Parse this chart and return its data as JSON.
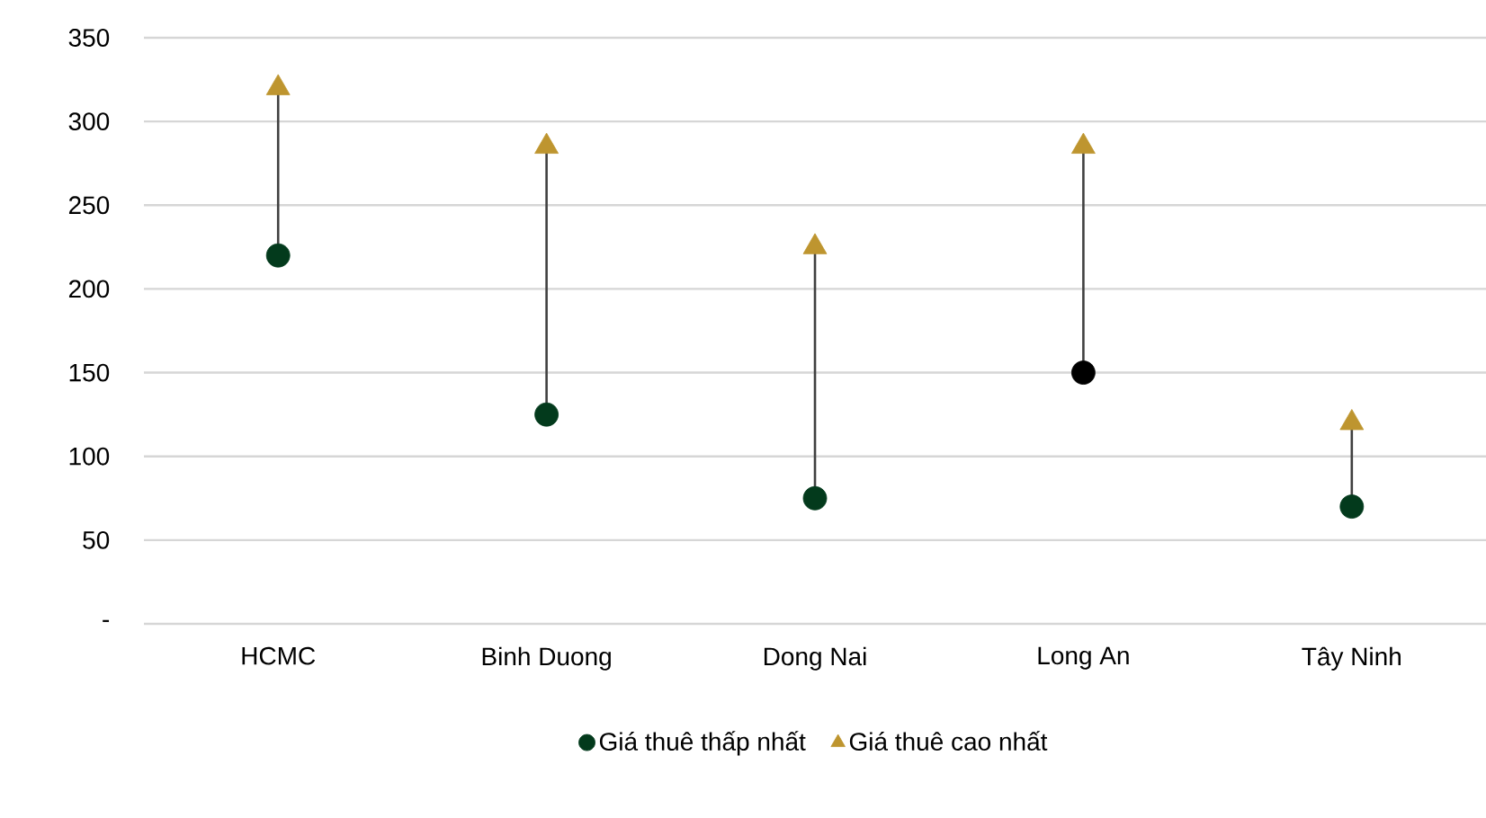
{
  "chart_data": {
    "type": "scatter",
    "categories": [
      "HCMC",
      "Binh Duong",
      "Dong Nai",
      "Long An",
      "Tây Ninh"
    ],
    "series": [
      {
        "name": "Giá thuê thấp nhất",
        "color": "#033a1c",
        "colors": [
          "#033a1c",
          "#033a1c",
          "#033a1c",
          "#000000",
          "#033a1c"
        ],
        "marker": "circle",
        "values": [
          220,
          125,
          75,
          150,
          70
        ]
      },
      {
        "name": "Giá thuê cao nhất",
        "color": "#be952f",
        "marker": "triangle",
        "values": [
          320,
          285,
          225,
          285,
          120
        ]
      }
    ],
    "ylim": [
      0,
      350
    ],
    "yticks": [
      {
        "value": 0,
        "label": "-"
      },
      50,
      100,
      150,
      200,
      250,
      300,
      350
    ],
    "grid": "y",
    "legend": "bottom"
  }
}
